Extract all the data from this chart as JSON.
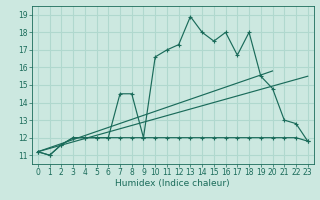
{
  "xlabel": "Humidex (Indice chaleur)",
  "xlim": [
    -0.5,
    23.5
  ],
  "ylim": [
    10.5,
    19.5
  ],
  "yticks": [
    11,
    12,
    13,
    14,
    15,
    16,
    17,
    18,
    19
  ],
  "xticks": [
    0,
    1,
    2,
    3,
    4,
    5,
    6,
    7,
    8,
    9,
    10,
    11,
    12,
    13,
    14,
    15,
    16,
    17,
    18,
    19,
    20,
    21,
    22,
    23
  ],
  "bg_color": "#cce8e0",
  "grid_color": "#b0d8ce",
  "line_color": "#1a6b5a",
  "lines": [
    {
      "x": [
        0,
        1,
        2,
        3,
        4,
        5,
        6,
        7,
        8,
        9,
        10,
        11,
        12,
        13,
        14,
        15,
        16,
        17,
        18,
        19,
        20,
        21,
        22,
        23
      ],
      "y": [
        11.2,
        11.0,
        11.6,
        12.0,
        12.0,
        12.0,
        12.0,
        12.0,
        12.0,
        12.0,
        12.0,
        12.0,
        12.0,
        12.0,
        12.0,
        12.0,
        12.0,
        12.0,
        12.0,
        12.0,
        12.0,
        12.0,
        12.0,
        11.8
      ]
    },
    {
      "x": [
        0,
        1,
        2,
        3,
        4,
        5,
        6,
        7,
        8,
        9,
        10,
        11,
        12,
        13,
        14,
        15,
        16,
        17,
        18,
        19,
        20,
        21,
        22,
        23
      ],
      "y": [
        11.2,
        11.0,
        11.6,
        12.0,
        12.0,
        12.0,
        12.0,
        14.5,
        14.5,
        12.0,
        16.6,
        17.0,
        17.3,
        18.9,
        18.0,
        17.5,
        18.0,
        16.7,
        18.0,
        15.5,
        14.8,
        13.0,
        12.8,
        11.8
      ]
    },
    {
      "x": [
        0,
        23
      ],
      "y": [
        11.2,
        15.5
      ]
    },
    {
      "x": [
        0,
        20
      ],
      "y": [
        11.2,
        15.8
      ]
    }
  ]
}
